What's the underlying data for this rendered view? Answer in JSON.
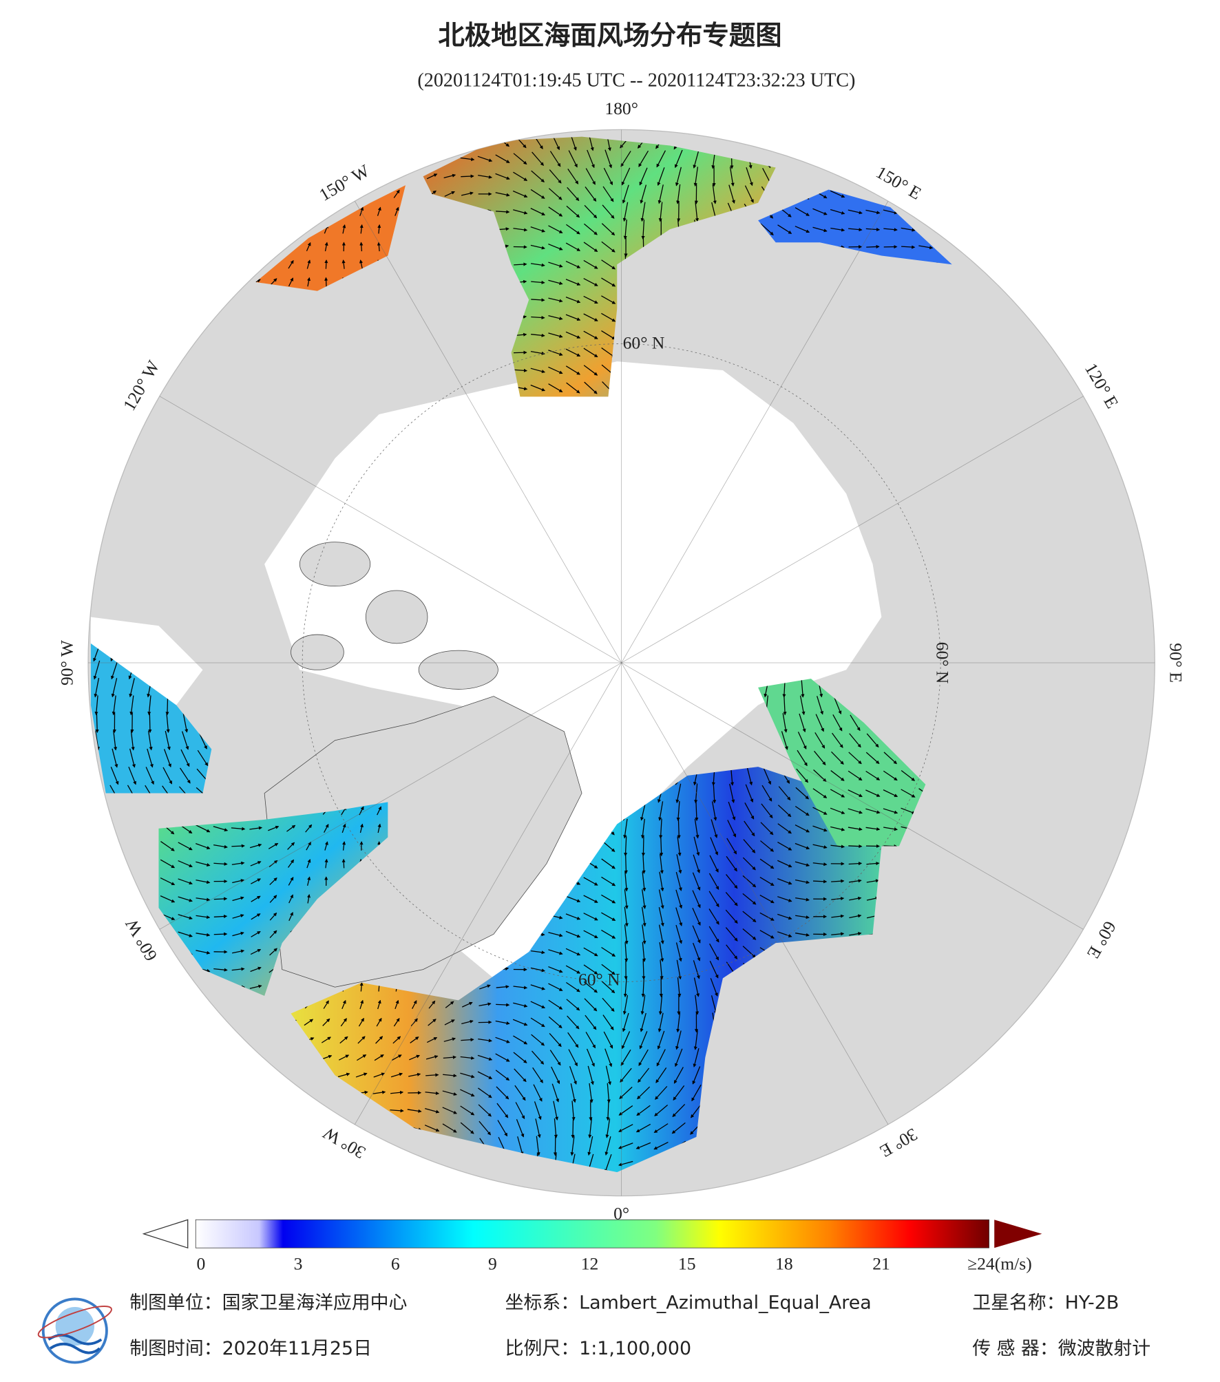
{
  "title": "北极地区海面风场分布专题图",
  "subtitle": "(20201124T01:19:45 UTC -- 20201124T23:32:23 UTC)",
  "map": {
    "lon_labels": [
      {
        "value": 180,
        "label": "180°"
      },
      {
        "value": 150,
        "label": "150° E"
      },
      {
        "value": 120,
        "label": "120° E"
      },
      {
        "value": 90,
        "label": "90° E"
      },
      {
        "value": 60,
        "label": "60° E"
      },
      {
        "value": 30,
        "label": "30° E"
      },
      {
        "value": 0,
        "label": "0°"
      },
      {
        "value": -30,
        "label": "30° W"
      },
      {
        "value": -60,
        "label": "60° W"
      },
      {
        "value": -90,
        "label": "90° W"
      },
      {
        "value": -120,
        "label": "120° W"
      },
      {
        "value": -150,
        "label": "150° W"
      }
    ],
    "lat_labels": [
      {
        "value": 60,
        "label": "60° N"
      },
      {
        "value": 60,
        "label": "60° N"
      },
      {
        "value": 60,
        "label": "60° N"
      }
    ]
  },
  "colorbar": {
    "range": [
      0,
      24
    ],
    "ticks": [
      0,
      3,
      6,
      9,
      12,
      15,
      18,
      21,
      {
        "value": 24,
        "label": "≥24(m/s)"
      }
    ]
  },
  "footer": [
    [
      "制图单位：国家卫星海洋应用中心",
      "坐标系：Lambert_Azimuthal_Equal_Area",
      "卫星名称：HY-2B"
    ],
    [
      "制图时间：2020年11月25日",
      "比例尺：1:1,100,000",
      "传 感 器：微波散射计"
    ]
  ]
}
